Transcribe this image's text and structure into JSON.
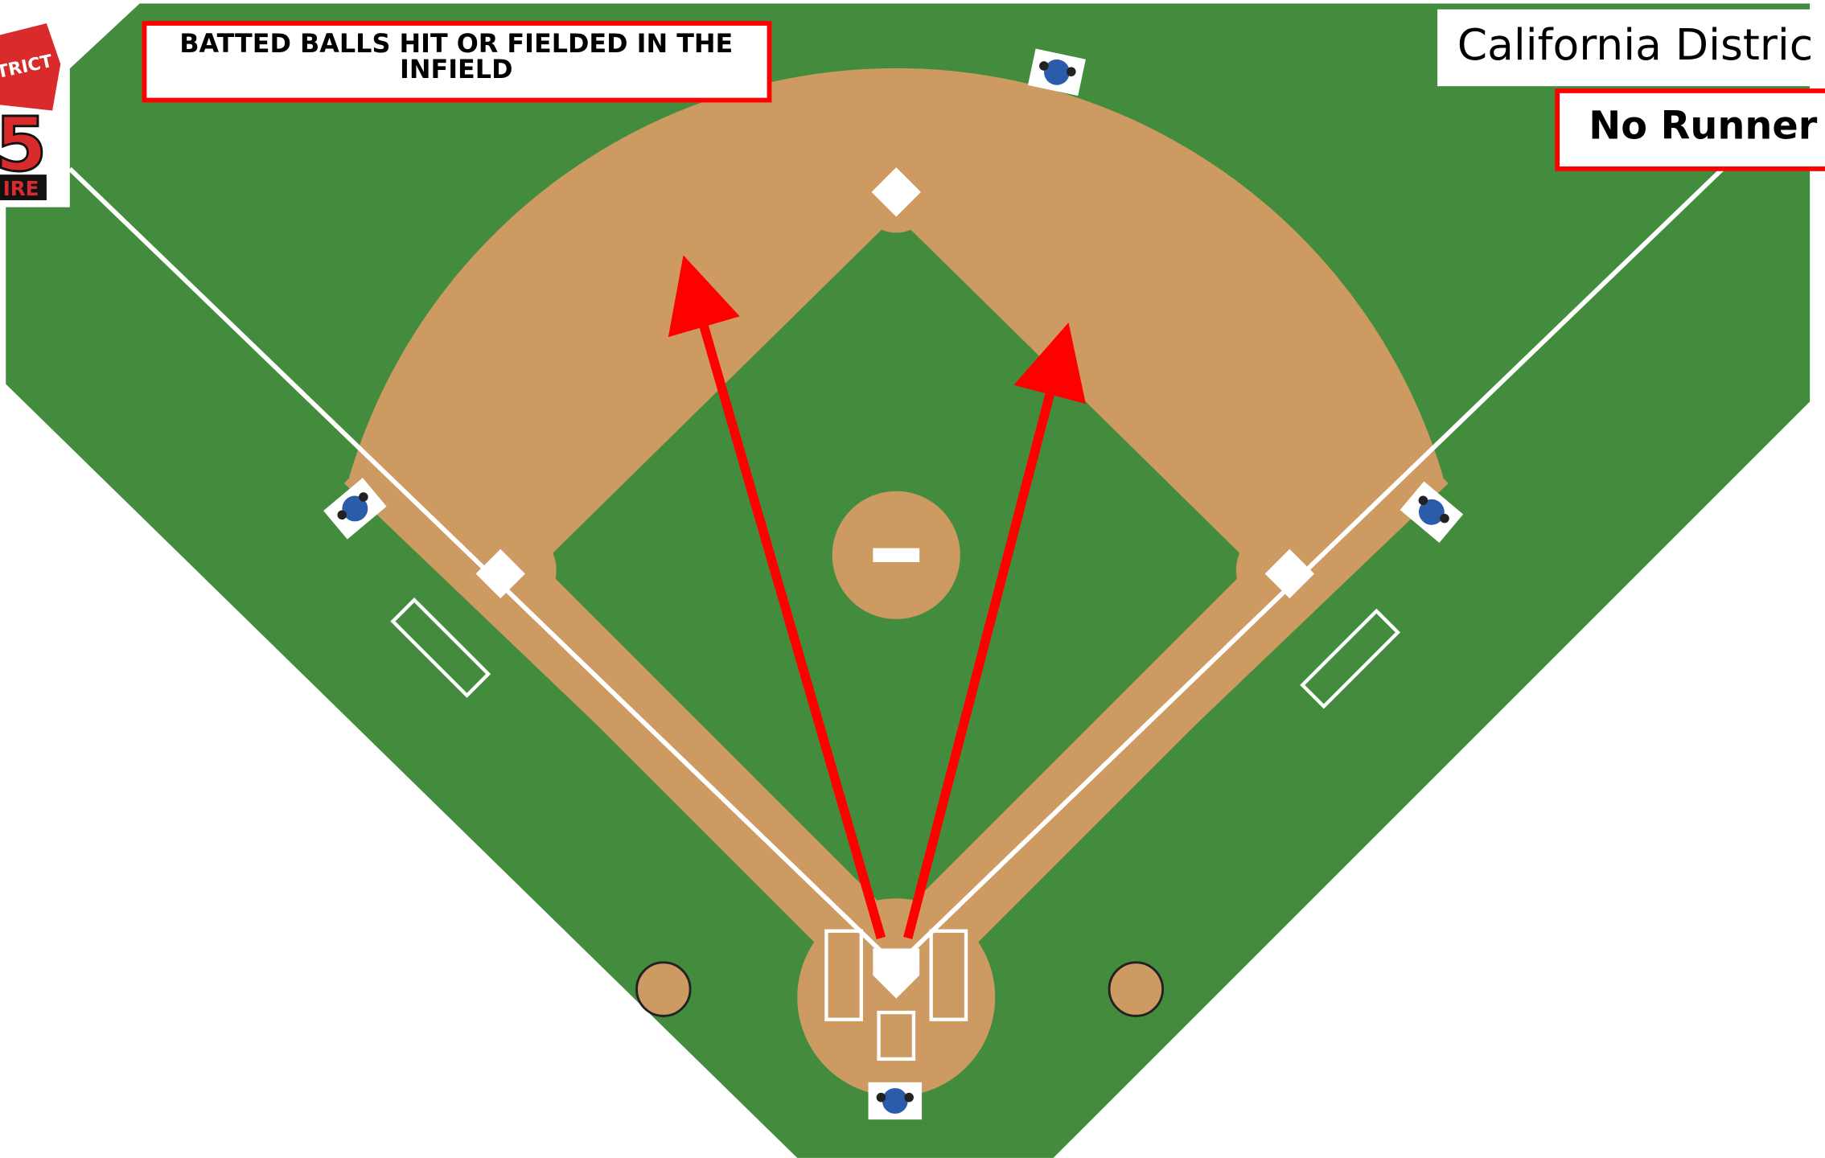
{
  "title_box": {
    "lines": [
      "BATTED BALLS HIT OR FIELDED IN THE",
      "INFIELD"
    ]
  },
  "district_label": "California Distric",
  "situation": "No Runner",
  "logo": {
    "lines": [
      "TRICT",
      "5",
      "IRE"
    ]
  }
}
